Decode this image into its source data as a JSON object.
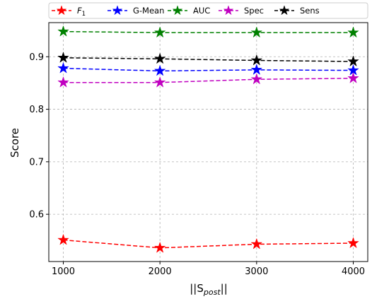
{
  "chart_data": {
    "type": "line",
    "x": [
      1000,
      2000,
      3000,
      4000
    ],
    "xlim": [
      850,
      4150
    ],
    "ylim": [
      0.51,
      0.965
    ],
    "x_ticks": [
      1000,
      2000,
      3000,
      4000
    ],
    "x_tick_labels": [
      "1000",
      "2000",
      "3000",
      "4000"
    ],
    "y_ticks": [
      0.6,
      0.7,
      0.8,
      0.9
    ],
    "y_tick_labels": [
      "0.6",
      "0.7",
      "0.8",
      "0.9"
    ],
    "xlabel": "||S",
    "xlabel_sub": "post",
    "xlabel_suffix": "||",
    "ylabel": "Score",
    "grid": true,
    "legend_placement": "top",
    "series": [
      {
        "name": "F",
        "name_sub": "1",
        "color": "#ff0000",
        "values": [
          0.551,
          0.536,
          0.543,
          0.545
        ]
      },
      {
        "name": "G-Mean",
        "color": "#0000ff",
        "values": [
          0.878,
          0.873,
          0.875,
          0.874
        ]
      },
      {
        "name": "AUC",
        "color": "#008000",
        "values": [
          0.948,
          0.946,
          0.946,
          0.946
        ]
      },
      {
        "name": "Spec",
        "color": "#c000c0",
        "values": [
          0.851,
          0.851,
          0.857,
          0.859
        ]
      },
      {
        "name": "Sens",
        "color": "#000000",
        "values": [
          0.898,
          0.896,
          0.893,
          0.891
        ]
      }
    ]
  }
}
